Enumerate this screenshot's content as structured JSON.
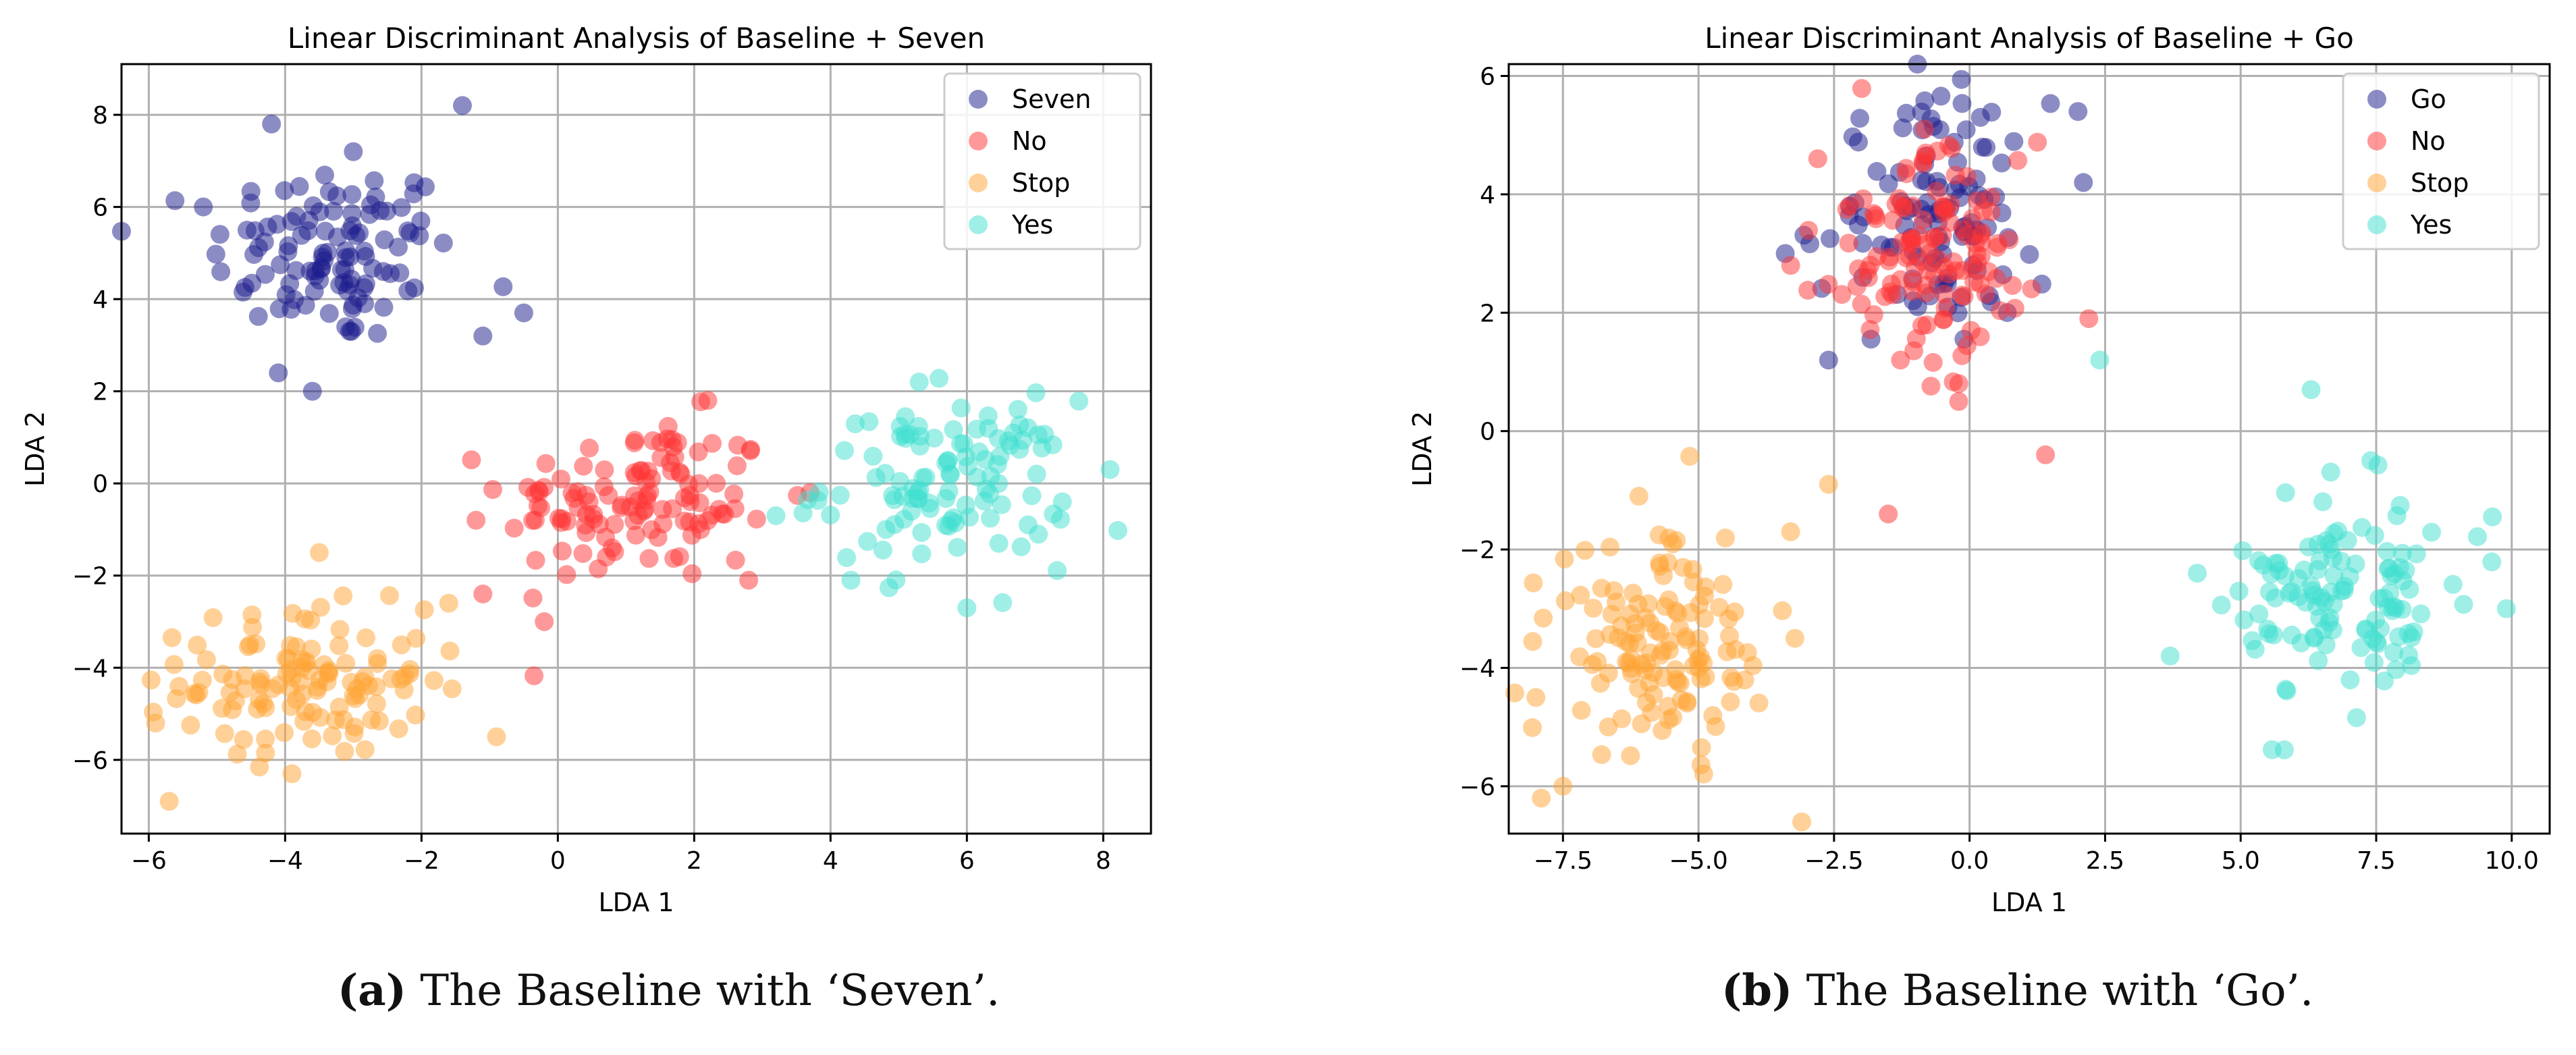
{
  "chart_data": [
    {
      "type": "scatter",
      "title": "Linear Discriminant Analysis of Baseline + Seven",
      "xlabel": "LDA 1",
      "ylabel": "LDA 2",
      "xlim": [
        -6.4,
        8.7
      ],
      "ylim": [
        -7.6,
        9.1
      ],
      "xticks": [
        -6,
        -4,
        -2,
        0,
        2,
        4,
        6,
        8
      ],
      "xtick_labels": [
        "−6",
        "−4",
        "−2",
        "0",
        "2",
        "4",
        "6",
        "8"
      ],
      "yticks": [
        -6,
        -4,
        -2,
        0,
        2,
        4,
        6,
        8
      ],
      "ytick_labels": [
        "−6",
        "−4",
        "−2",
        "0",
        "2",
        "4",
        "6",
        "8"
      ],
      "grid": true,
      "legend_position": "top-right",
      "series": [
        {
          "name": "Seven",
          "color": "#1a1a8c",
          "center": [
            -3.3,
            5.0
          ],
          "spread": [
            0.9,
            1.0
          ],
          "n": 110,
          "extra": [
            [
              -4.2,
              7.8
            ],
            [
              -1.4,
              8.2
            ],
            [
              -3.0,
              7.2
            ],
            [
              -0.5,
              3.7
            ],
            [
              -3.6,
              2.0
            ],
            [
              -4.1,
              2.4
            ],
            [
              -5.2,
              6.0
            ],
            [
              -1.1,
              3.2
            ]
          ]
        },
        {
          "name": "No",
          "color": "#ff3333",
          "center": [
            1.2,
            -0.4
          ],
          "spread": [
            1.0,
            0.9
          ],
          "n": 120,
          "extra": [
            [
              -0.2,
              -3.0
            ],
            [
              -1.1,
              -2.4
            ],
            [
              3.7,
              -0.2
            ],
            [
              2.8,
              -2.1
            ],
            [
              2.2,
              1.8
            ],
            [
              -1.2,
              -0.8
            ]
          ]
        },
        {
          "name": "Stop",
          "color": "#ffa333",
          "center": [
            -3.7,
            -4.3
          ],
          "spread": [
            0.9,
            0.8
          ],
          "n": 120,
          "extra": [
            [
              -5.7,
              -6.9
            ],
            [
              -3.9,
              -6.3
            ],
            [
              -1.6,
              -2.6
            ],
            [
              -0.9,
              -5.5
            ],
            [
              -5.9,
              -5.2
            ],
            [
              -3.5,
              -1.5
            ]
          ]
        },
        {
          "name": "Yes",
          "color": "#40e0d0",
          "center": [
            5.7,
            0.0
          ],
          "spread": [
            0.9,
            0.9
          ],
          "n": 110,
          "extra": [
            [
              8.1,
              0.3
            ],
            [
              5.3,
              2.2
            ],
            [
              4.3,
              -2.1
            ],
            [
              6.0,
              -2.7
            ],
            [
              3.2,
              -0.7
            ],
            [
              7.4,
              -0.4
            ]
          ]
        }
      ]
    },
    {
      "type": "scatter",
      "title": "Linear Discriminant Analysis of Baseline + Go",
      "xlabel": "LDA 1",
      "ylabel": "LDA 2",
      "xlim": [
        -8.5,
        10.7
      ],
      "ylim": [
        -6.8,
        6.2
      ],
      "xticks": [
        -7.5,
        -5.0,
        -2.5,
        0.0,
        2.5,
        5.0,
        7.5,
        10.0
      ],
      "xtick_labels": [
        "−7.5",
        "−5.0",
        "−2.5",
        "0.0",
        "2.5",
        "5.0",
        "7.5",
        "10.0"
      ],
      "yticks": [
        -6,
        -4,
        -2,
        0,
        2,
        4,
        6
      ],
      "ytick_labels": [
        "−6",
        "−4",
        "−2",
        "0",
        "2",
        "4",
        "6"
      ],
      "grid": true,
      "legend_position": "top-right",
      "series": [
        {
          "name": "Go",
          "color": "#1a1a8c",
          "center": [
            -0.7,
            3.6
          ],
          "spread": [
            1.0,
            1.0
          ],
          "n": 110,
          "extra": [
            [
              2.0,
              5.4
            ],
            [
              2.1,
              4.2
            ],
            [
              0.2,
              5.3
            ],
            [
              -2.6,
              1.2
            ],
            [
              -3.4,
              3.0
            ]
          ]
        },
        {
          "name": "No",
          "color": "#ff3333",
          "center": [
            -0.7,
            3.0
          ],
          "spread": [
            1.0,
            0.9
          ],
          "n": 130,
          "extra": [
            [
              1.4,
              -0.4
            ],
            [
              -1.5,
              -1.4
            ],
            [
              -0.2,
              0.5
            ],
            [
              2.2,
              1.9
            ],
            [
              -3.3,
              2.8
            ]
          ]
        },
        {
          "name": "Stop",
          "color": "#ffa333",
          "center": [
            -5.8,
            -3.6
          ],
          "spread": [
            1.0,
            0.9
          ],
          "n": 130,
          "extra": [
            [
              -7.9,
              -6.2
            ],
            [
              -7.5,
              -6.0
            ],
            [
              -6.1,
              -1.1
            ],
            [
              -2.6,
              -0.9
            ],
            [
              -3.3,
              -1.7
            ],
            [
              -8.0,
              -4.5
            ]
          ]
        },
        {
          "name": "Yes",
          "color": "#40e0d0",
          "center": [
            7.0,
            -2.8
          ],
          "spread": [
            1.0,
            0.9
          ],
          "n": 120,
          "extra": [
            [
              6.3,
              0.7
            ],
            [
              2.4,
              1.2
            ],
            [
              9.9,
              -3.0
            ],
            [
              3.7,
              -3.8
            ],
            [
              4.2,
              -2.4
            ],
            [
              7.4,
              -0.5
            ]
          ]
        }
      ]
    }
  ],
  "captions": {
    "a": {
      "label": "(a)",
      "text": " The Baseline with ‘Seven’."
    },
    "b": {
      "label": "(b)",
      "text": " The Baseline with ‘Go’."
    }
  }
}
